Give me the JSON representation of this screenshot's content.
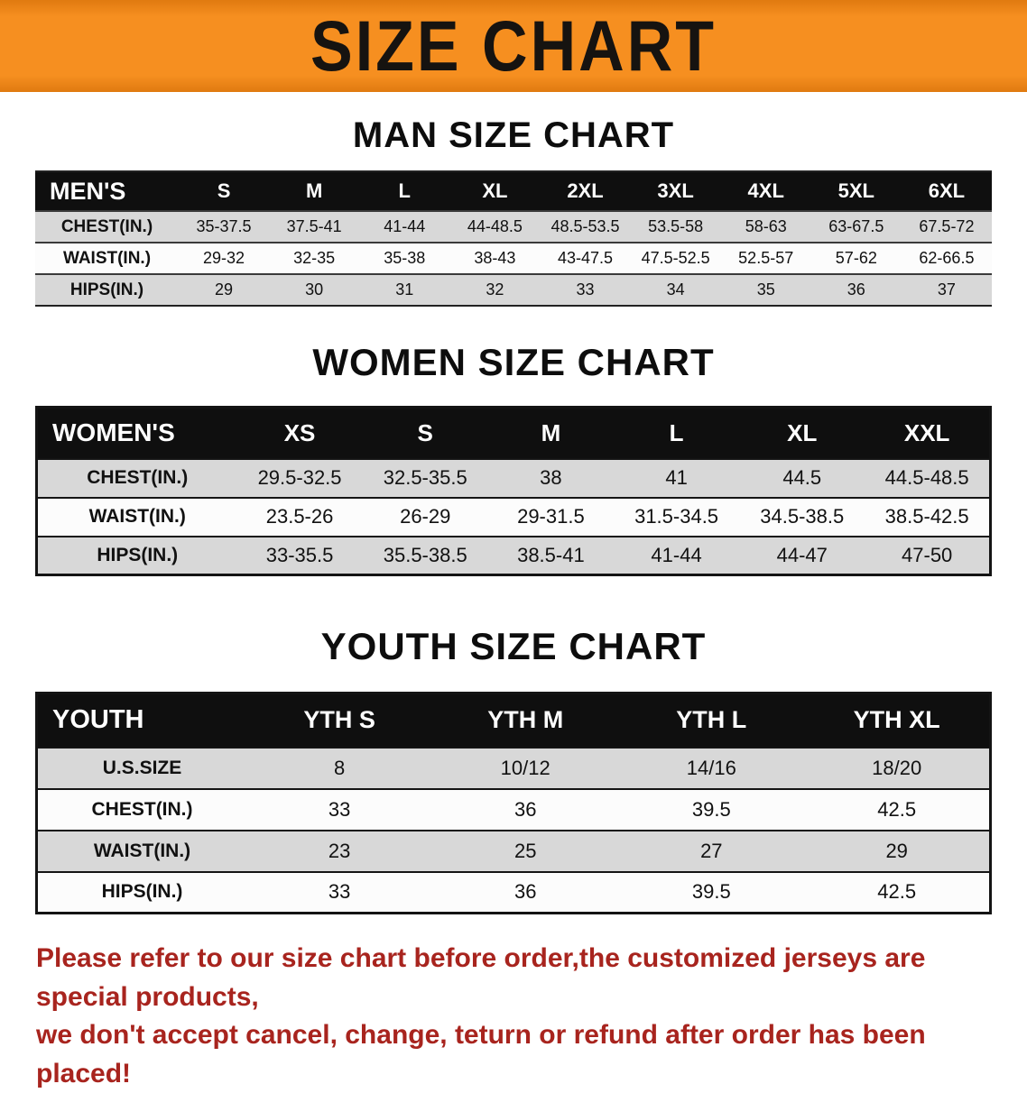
{
  "banner": {
    "title": "SIZE CHART",
    "bg_color": "#F68F20",
    "text_color": "#161310"
  },
  "sections": [
    {
      "id": "men",
      "heading": "MAN SIZE CHART",
      "table": {
        "label": "MEN'S",
        "columns": [
          "S",
          "M",
          "L",
          "XL",
          "2XL",
          "3XL",
          "4XL",
          "5XL",
          "6XL"
        ],
        "rows": [
          {
            "label": "CHEST(IN.)",
            "values": [
              "35-37.5",
              "37.5-41",
              "41-44",
              "44-48.5",
              "48.5-53.5",
              "53.5-58",
              "58-63",
              "63-67.5",
              "67.5-72"
            ]
          },
          {
            "label": "WAIST(IN.)",
            "values": [
              "29-32",
              "32-35",
              "35-38",
              "38-43",
              "43-47.5",
              "47.5-52.5",
              "52.5-57",
              "57-62",
              "62-66.5"
            ]
          },
          {
            "label": "HIPS(IN.)",
            "values": [
              "29",
              "30",
              "31",
              "32",
              "33",
              "34",
              "35",
              "36",
              "37"
            ]
          }
        ]
      }
    },
    {
      "id": "women",
      "heading": "WOMEN SIZE CHART",
      "table": {
        "label": "WOMEN'S",
        "columns": [
          "XS",
          "S",
          "M",
          "L",
          "XL",
          "XXL"
        ],
        "rows": [
          {
            "label": "CHEST(IN.)",
            "values": [
              "29.5-32.5",
              "32.5-35.5",
              "38",
              "41",
              "44.5",
              "44.5-48.5"
            ]
          },
          {
            "label": "WAIST(IN.)",
            "values": [
              "23.5-26",
              "26-29",
              "29-31.5",
              "31.5-34.5",
              "34.5-38.5",
              "38.5-42.5"
            ]
          },
          {
            "label": "HIPS(IN.)",
            "values": [
              "33-35.5",
              "35.5-38.5",
              "38.5-41",
              "41-44",
              "44-47",
              "47-50"
            ]
          }
        ]
      }
    },
    {
      "id": "youth",
      "heading": "YOUTH SIZE CHART",
      "table": {
        "label": "YOUTH",
        "columns": [
          "YTH S",
          "YTH M",
          "YTH L",
          "YTH XL"
        ],
        "rows": [
          {
            "label": "U.S.SIZE",
            "values": [
              "8",
              "10/12",
              "14/16",
              "18/20"
            ]
          },
          {
            "label": "CHEST(IN.)",
            "values": [
              "33",
              "36",
              "39.5",
              "42.5"
            ]
          },
          {
            "label": "WAIST(IN.)",
            "values": [
              "23",
              "25",
              "27",
              "29"
            ]
          },
          {
            "label": "HIPS(IN.)",
            "values": [
              "33",
              "36",
              "39.5",
              "42.5"
            ]
          }
        ]
      }
    }
  ],
  "footer": {
    "color": "#A8241E",
    "lines": [
      "Please refer to our size chart before order,the customized jerseys are special products,",
      "we don't accept cancel, change, teturn or refund after order has been placed!"
    ]
  }
}
